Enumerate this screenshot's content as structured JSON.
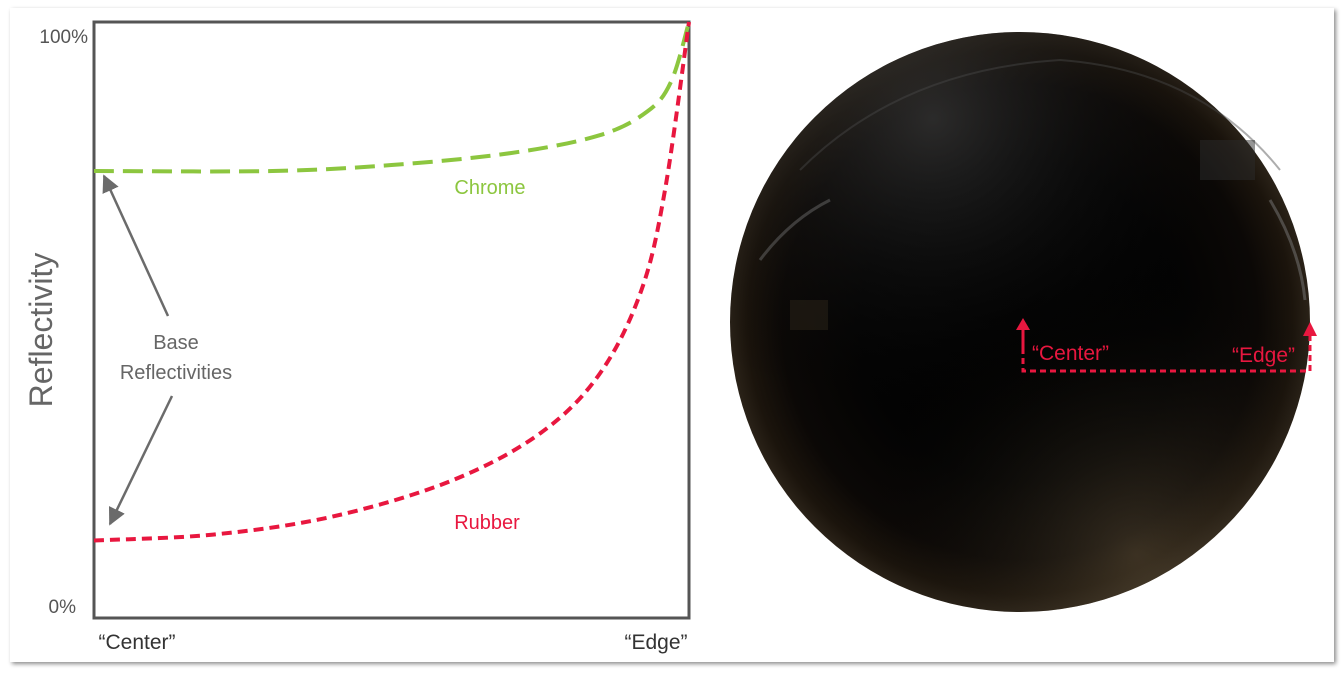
{
  "colors": {
    "frame": "#555555",
    "chrome_curve": "#8cc63f",
    "rubber_curve": "#e8173f",
    "annotation": "#6b6b6b",
    "sphere_base": "#050505"
  },
  "chart": {
    "y_axis_label": "Reflectivity",
    "y_top_tick": "100%",
    "y_bottom_tick": "0%",
    "x_left_tick": "“Center”",
    "x_right_tick": "“Edge”",
    "annotation_line1": "Base",
    "annotation_line2": "Reflectivities"
  },
  "chart_data": {
    "type": "line",
    "ylabel": "Reflectivity",
    "ylim": [
      0,
      100
    ],
    "x_labels": [
      "“Center”",
      "“Edge”"
    ],
    "y_tick_labels": [
      "0%",
      "100%"
    ],
    "grid": false,
    "series": [
      {
        "name": "Chrome",
        "color": "#8cc63f",
        "style": "dashed",
        "x": [
          0,
          0.3,
          0.5,
          0.7,
          0.85,
          0.93,
          0.97,
          1.0
        ],
        "y": [
          75,
          75,
          76,
          78,
          81,
          85,
          90,
          100
        ]
      },
      {
        "name": "Rubber",
        "color": "#e8173f",
        "style": "dashed",
        "x": [
          0,
          0.2,
          0.4,
          0.6,
          0.75,
          0.85,
          0.92,
          0.96,
          1.0
        ],
        "y": [
          13,
          14,
          17,
          23,
          31,
          41,
          55,
          72,
          100
        ]
      }
    ]
  },
  "sphere": {
    "center_label": "“Center”",
    "edge_label": "“Edge”"
  }
}
